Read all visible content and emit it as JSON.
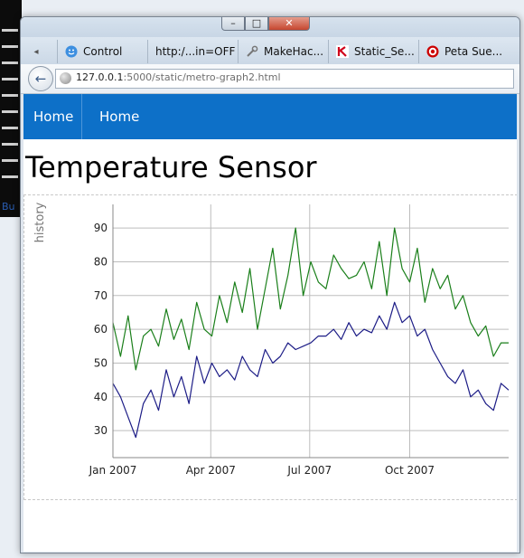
{
  "browser": {
    "tabs": [
      {
        "label": "Control",
        "icon": "face-icon"
      },
      {
        "label": "http:/...in=OFF",
        "icon": "none"
      },
      {
        "label": "MakeHac...",
        "icon": "wrench-icon"
      },
      {
        "label": "Static_Se...",
        "icon": "k-logo-icon"
      },
      {
        "label": "Peta Sue...",
        "icon": "target-icon"
      }
    ],
    "url_host": "127.0.0.1",
    "url_rest": ":5000/static/metro-graph2.html"
  },
  "appbar": {
    "nav_items": [
      "Home",
      "Home"
    ],
    "color": "#0d70c8"
  },
  "page": {
    "title": "Temperature Sensor"
  },
  "desktop": {
    "stray_text": "Bu"
  },
  "chart_data": {
    "type": "line",
    "ylabel": "history",
    "xlabel": "",
    "ylim": [
      22,
      97
    ],
    "yticks": [
      30,
      40,
      50,
      60,
      70,
      80,
      90
    ],
    "xticks": [
      "Jan 2007",
      "Apr 2007",
      "Jul 2007",
      "Oct 2007"
    ],
    "x_start": "2007-01-01",
    "x_end": "2007-12-31",
    "grid": true,
    "series": [
      {
        "color": "#1a7f1a",
        "x": [
          "2007-01-01",
          "2007-01-08",
          "2007-01-15",
          "2007-01-22",
          "2007-01-29",
          "2007-02-05",
          "2007-02-12",
          "2007-02-19",
          "2007-02-26",
          "2007-03-05",
          "2007-03-12",
          "2007-03-19",
          "2007-03-26",
          "2007-04-02",
          "2007-04-09",
          "2007-04-16",
          "2007-04-23",
          "2007-04-30",
          "2007-05-07",
          "2007-05-14",
          "2007-05-21",
          "2007-05-28",
          "2007-06-04",
          "2007-06-11",
          "2007-06-18",
          "2007-06-25",
          "2007-07-02",
          "2007-07-09",
          "2007-07-16",
          "2007-07-23",
          "2007-07-30",
          "2007-08-06",
          "2007-08-13",
          "2007-08-20",
          "2007-08-27",
          "2007-09-03",
          "2007-09-10",
          "2007-09-17",
          "2007-09-24",
          "2007-10-01",
          "2007-10-08",
          "2007-10-15",
          "2007-10-22",
          "2007-10-29",
          "2007-11-05",
          "2007-11-12",
          "2007-11-19",
          "2007-11-26",
          "2007-12-03",
          "2007-12-10",
          "2007-12-17",
          "2007-12-24",
          "2007-12-31"
        ],
        "values": [
          62,
          52,
          64,
          48,
          58,
          60,
          55,
          66,
          57,
          63,
          54,
          68,
          60,
          58,
          70,
          62,
          74,
          65,
          78,
          60,
          72,
          84,
          66,
          76,
          90,
          70,
          80,
          74,
          72,
          82,
          78,
          75,
          76,
          80,
          72,
          86,
          70,
          90,
          78,
          74,
          84,
          68,
          78,
          72,
          76,
          66,
          70,
          62,
          58,
          61,
          52,
          56,
          56
        ]
      },
      {
        "color": "#1c1c86",
        "x": [
          "2007-01-01",
          "2007-01-08",
          "2007-01-15",
          "2007-01-22",
          "2007-01-29",
          "2007-02-05",
          "2007-02-12",
          "2007-02-19",
          "2007-02-26",
          "2007-03-05",
          "2007-03-12",
          "2007-03-19",
          "2007-03-26",
          "2007-04-02",
          "2007-04-09",
          "2007-04-16",
          "2007-04-23",
          "2007-04-30",
          "2007-05-07",
          "2007-05-14",
          "2007-05-21",
          "2007-05-28",
          "2007-06-04",
          "2007-06-11",
          "2007-06-18",
          "2007-06-25",
          "2007-07-02",
          "2007-07-09",
          "2007-07-16",
          "2007-07-23",
          "2007-07-30",
          "2007-08-06",
          "2007-08-13",
          "2007-08-20",
          "2007-08-27",
          "2007-09-03",
          "2007-09-10",
          "2007-09-17",
          "2007-09-24",
          "2007-10-01",
          "2007-10-08",
          "2007-10-15",
          "2007-10-22",
          "2007-10-29",
          "2007-11-05",
          "2007-11-12",
          "2007-11-19",
          "2007-11-26",
          "2007-12-03",
          "2007-12-10",
          "2007-12-17",
          "2007-12-24",
          "2007-12-31"
        ],
        "values": [
          44,
          40,
          34,
          28,
          38,
          42,
          36,
          48,
          40,
          46,
          38,
          52,
          44,
          50,
          46,
          48,
          45,
          52,
          48,
          46,
          54,
          50,
          52,
          56,
          54,
          55,
          56,
          58,
          58,
          60,
          57,
          62,
          58,
          60,
          59,
          64,
          60,
          68,
          62,
          64,
          58,
          60,
          54,
          50,
          46,
          44,
          48,
          40,
          42,
          38,
          36,
          44,
          42
        ]
      }
    ]
  }
}
